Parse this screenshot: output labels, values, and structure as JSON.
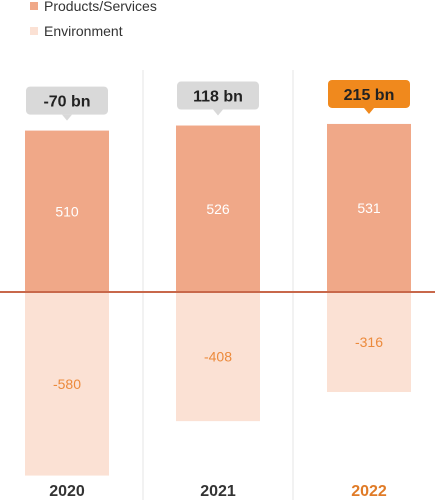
{
  "legend": {
    "products_label": "Products/Services",
    "environment_label": "Environment"
  },
  "colors": {
    "products": "#f0a888",
    "environment": "#fbe1d4",
    "baseline": "#c8684b",
    "products_text": "#ffffff",
    "environment_text": "#ec8a3c",
    "callout_default_bg": "#d9d9d9",
    "callout_default_text": "#222222",
    "callout_highlight_bg": "#f0891d",
    "callout_highlight_text": "#222222",
    "year_text": "#333333",
    "year_highlight_text": "#e07b27",
    "divider": "#e6e6e6"
  },
  "chart_data": {
    "type": "bar",
    "categories": [
      "2020",
      "2021",
      "2022"
    ],
    "series": [
      {
        "name": "Products/Services",
        "values": [
          510,
          526,
          531
        ],
        "labels": [
          "510",
          "526",
          "531"
        ]
      },
      {
        "name": "Environment",
        "values": [
          -580,
          -408,
          -316
        ],
        "labels": [
          "-580",
          "-408",
          "-316"
        ]
      }
    ],
    "net_labels": [
      "-70 bn",
      "118 bn",
      "215 bn"
    ],
    "highlight_category": "2022",
    "title": "",
    "xlabel": "",
    "ylabel": "",
    "ylim": [
      -600,
      550
    ]
  }
}
